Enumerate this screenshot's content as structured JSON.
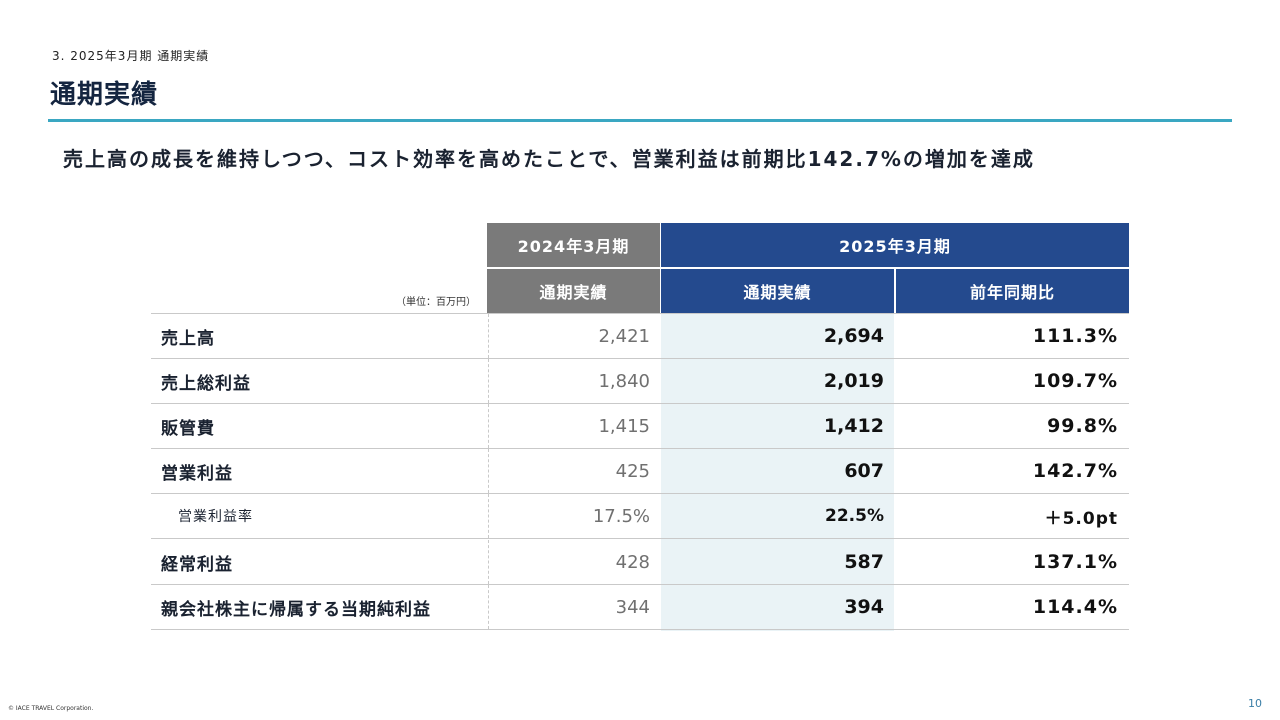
{
  "slide": {
    "breadcrumb": "3. 2025年3月期 通期実績",
    "title": "通期実績",
    "headline": "売上高の成長を維持しつつ、コスト効率を高めたことで、営業利益は前期比142.7%の増加を達成",
    "unit_note": "（単位：百万円）",
    "copyright": "© IACE TRAVEL Corporation.",
    "page_number": "10"
  },
  "colors": {
    "accent": "#3aa7c2",
    "navy": "#244a8e",
    "gray": "#7a7a7a",
    "highlight": "#eaf3f6"
  },
  "table": {
    "period_prev": "2024年3月期",
    "period_cur": "2025年3月期",
    "col_prev": "通期実績",
    "col_cur": "通期実績",
    "col_yoy": "前年同期比",
    "rows": [
      {
        "label": "売上高",
        "prev": "2,421",
        "cur": "2,694",
        "yoy": "111.3%"
      },
      {
        "label": "売上総利益",
        "prev": "1,840",
        "cur": "2,019",
        "yoy": "109.7%"
      },
      {
        "label": "販管費",
        "prev": "1,415",
        "cur": "1,412",
        "yoy": "99.8%"
      },
      {
        "label": "営業利益",
        "prev": "425",
        "cur": "607",
        "yoy": "142.7%"
      },
      {
        "label": "営業利益率",
        "prev": "17.5%",
        "cur": "22.5%",
        "yoy": "＋5.0pt"
      },
      {
        "label": "経常利益",
        "prev": "428",
        "cur": "587",
        "yoy": "137.1%"
      },
      {
        "label": "親会社株主に帰属する当期純利益",
        "prev": "344",
        "cur": "394",
        "yoy": "114.4%"
      }
    ]
  }
}
